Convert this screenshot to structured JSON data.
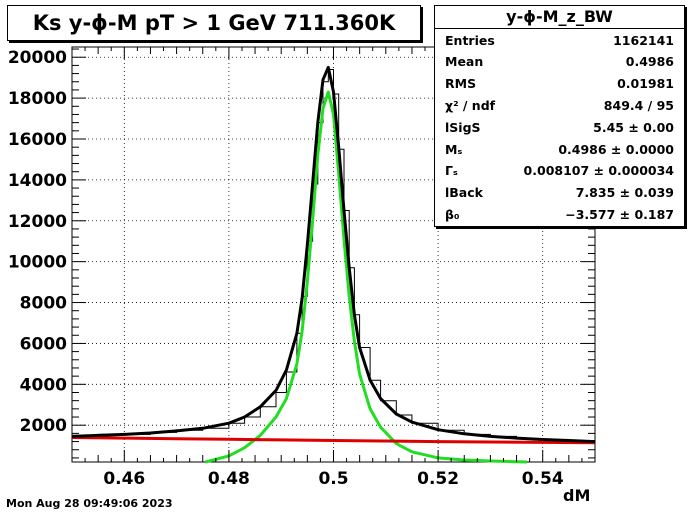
{
  "title": "Ks y-ϕ-M pT > 1 GeV  711.360K",
  "stats": {
    "name": "y-ϕ-M_z_BW",
    "rows": [
      {
        "label": "Entries",
        "value": "1162141"
      },
      {
        "label": "Mean",
        "value": "0.4986"
      },
      {
        "label": "RMS",
        "value": "0.01981"
      },
      {
        "label": "χ² / ndf",
        "value": "849.4 / 95"
      },
      {
        "label": "lSigS",
        "value": "5.45 ± 0.00"
      },
      {
        "label": "Mₛ",
        "value": "0.4986 ± 0.0000"
      },
      {
        "label": "Γₛ",
        "value": "0.008107 ± 0.000034"
      },
      {
        "label": "lBack",
        "value": "7.835 ± 0.039"
      },
      {
        "label": "β₀",
        "value": "−3.577 ± 0.187"
      }
    ]
  },
  "footer": "Mon Aug 28 09:49:06 2023",
  "chart_data": {
    "type": "line",
    "xlabel": "dM",
    "ylabel": "",
    "xlim": [
      0.45,
      0.55
    ],
    "ylim": [
      200,
      20500
    ],
    "xticks": [
      0.46,
      0.48,
      0.5,
      0.52,
      0.54
    ],
    "xtick_labels": [
      "0.46",
      "0.48",
      "0.5",
      "0.52",
      "0.54"
    ],
    "yticks": [
      2000,
      4000,
      6000,
      8000,
      10000,
      12000,
      14000,
      16000,
      18000,
      20000
    ],
    "ytick_labels": [
      "2000",
      "4000",
      "6000",
      "8000",
      "10000",
      "12000",
      "14000",
      "16000",
      "18000",
      "20000"
    ],
    "grid": true,
    "series": [
      {
        "role": "histogram",
        "color": "#000000",
        "x": [
          0.45,
          0.455,
          0.46,
          0.465,
          0.47,
          0.475,
          0.48,
          0.483,
          0.486,
          0.489,
          0.491,
          0.493,
          0.494,
          0.495,
          0.496,
          0.497,
          0.498,
          0.499,
          0.5,
          0.501,
          0.502,
          0.503,
          0.504,
          0.505,
          0.507,
          0.509,
          0.512,
          0.515,
          0.52,
          0.525,
          0.53,
          0.535,
          0.54,
          0.545,
          0.55
        ],
        "y": [
          1500,
          1550,
          1550,
          1650,
          1750,
          1850,
          2100,
          2400,
          2900,
          3600,
          4600,
          6500,
          8300,
          11000,
          13800,
          16800,
          18800,
          19400,
          18200,
          15500,
          12500,
          9700,
          7400,
          5800,
          4200,
          3200,
          2500,
          2100,
          1750,
          1550,
          1450,
          1350,
          1300,
          1250,
          1200
        ]
      },
      {
        "role": "total fit",
        "color": "#000000",
        "x": [
          0.45,
          0.455,
          0.46,
          0.465,
          0.47,
          0.475,
          0.48,
          0.483,
          0.486,
          0.489,
          0.491,
          0.493,
          0.494,
          0.495,
          0.496,
          0.497,
          0.498,
          0.499,
          0.5,
          0.501,
          0.502,
          0.503,
          0.504,
          0.505,
          0.507,
          0.509,
          0.512,
          0.515,
          0.52,
          0.525,
          0.53,
          0.535,
          0.54,
          0.545,
          0.55
        ],
        "y": [
          1450,
          1500,
          1550,
          1620,
          1720,
          1850,
          2100,
          2400,
          2900,
          3700,
          4700,
          6500,
          8200,
          10800,
          13800,
          16800,
          18900,
          19500,
          18300,
          15600,
          12500,
          9700,
          7400,
          5800,
          4200,
          3300,
          2550,
          2150,
          1780,
          1580,
          1450,
          1370,
          1300,
          1250,
          1200
        ]
      },
      {
        "role": "signal",
        "color": "#22dd22",
        "x": [
          0.4755,
          0.48,
          0.483,
          0.486,
          0.489,
          0.491,
          0.493,
          0.494,
          0.495,
          0.496,
          0.497,
          0.498,
          0.499,
          0.5,
          0.501,
          0.502,
          0.503,
          0.504,
          0.505,
          0.507,
          0.509,
          0.512,
          0.515,
          0.52,
          0.525,
          0.53,
          0.537
        ],
        "y": [
          200,
          500,
          900,
          1500,
          2400,
          3300,
          5000,
          6600,
          9000,
          12000,
          15200,
          17500,
          18300,
          17200,
          14300,
          11100,
          8300,
          6100,
          4500,
          2800,
          1900,
          1100,
          700,
          400,
          300,
          250,
          200
        ]
      },
      {
        "role": "background",
        "color": "#dd0000",
        "x": [
          0.45,
          0.46,
          0.47,
          0.48,
          0.49,
          0.5,
          0.51,
          0.52,
          0.53,
          0.54,
          0.55
        ],
        "y": [
          1400,
          1370,
          1340,
          1310,
          1280,
          1250,
          1225,
          1200,
          1180,
          1160,
          1140
        ]
      }
    ]
  }
}
